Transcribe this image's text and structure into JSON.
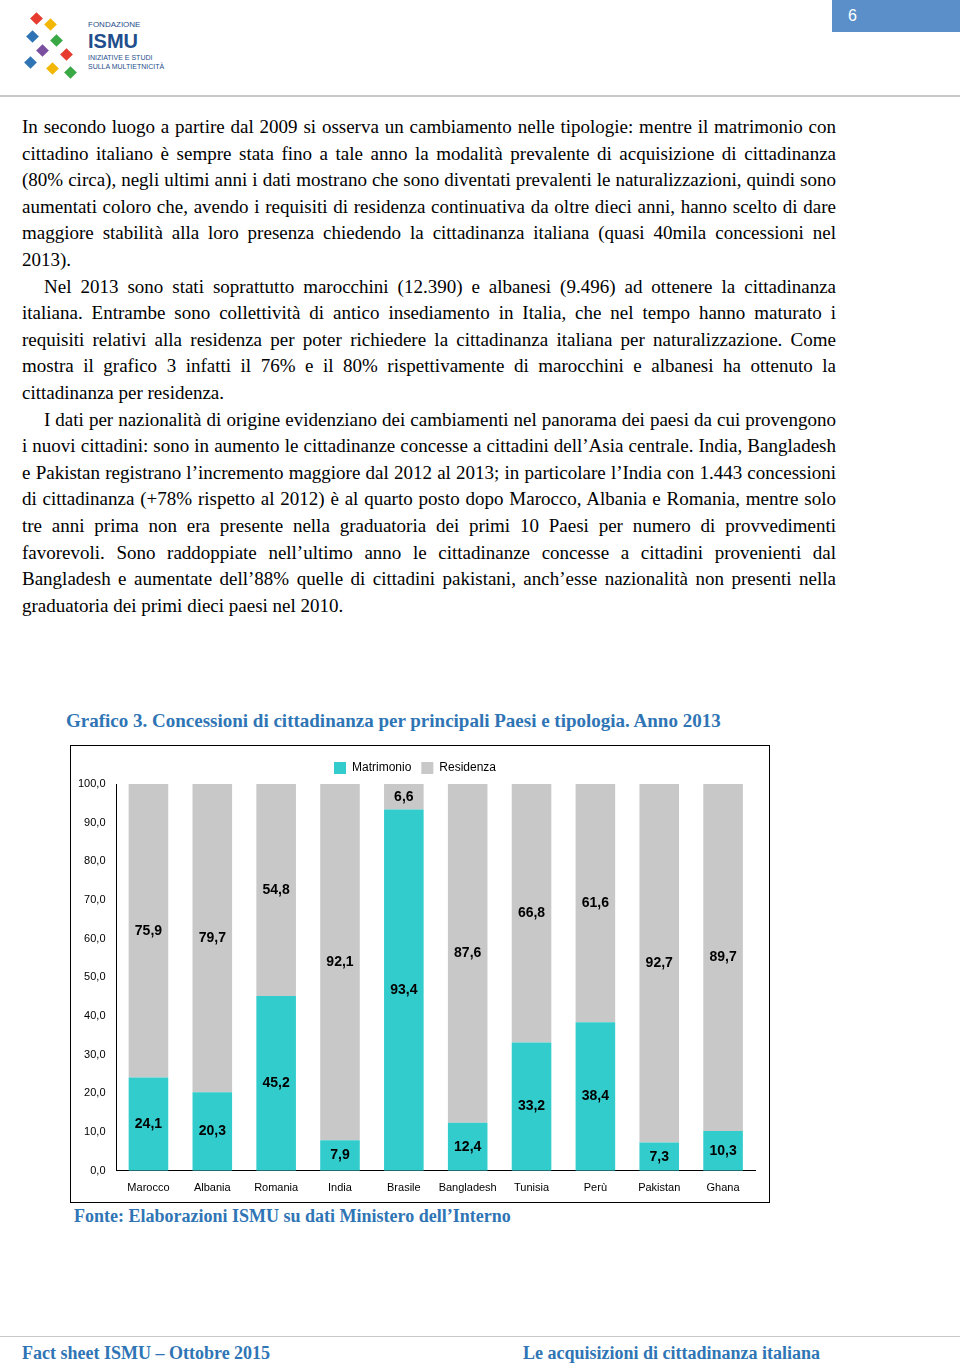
{
  "header": {
    "logo": [
      "FONDAZIONE",
      "ISMU",
      "INIZIATIVE E STUDI",
      "SULLA MULTIETNICITÀ"
    ],
    "page_number": "6"
  },
  "paragraphs": [
    "In secondo luogo a partire dal 2009 si osserva un cambiamento nelle tipologie: mentre il matrimonio con cittadino italiano è sempre stata fino a tale anno la modalità prevalente di acquisizione di cittadinanza (80% circa), negli ultimi anni i dati mostrano che sono diventati prevalenti le naturalizzazioni, quindi sono aumentati coloro che, avendo i requisiti di residenza continuativa da oltre dieci anni, hanno scelto di dare maggiore stabilità alla loro presenza chiedendo la cittadinanza italiana (quasi 40mila concessioni nel 2013).",
    "Nel 2013 sono stati soprattutto marocchini (12.390) e albanesi (9.496) ad ottenere la cittadinanza italiana. Entrambe sono collettività di antico insediamento in Italia, che nel tempo hanno maturato i requisiti relativi alla residenza per poter richiedere la cittadinanza italiana per naturalizzazione. Come mostra il grafico 3 infatti il 76% e il 80% rispettivamente di marocchini e albanesi ha ottenuto la cittadinanza per residenza.",
    "I dati per nazionalità di origine evidenziano dei cambiamenti nel panorama dei paesi da cui provengono i nuovi cittadini: sono in aumento le cittadinanze concesse a cittadini dell’Asia centrale. India, Bangladesh e Pakistan registrano l’incremento maggiore dal 2012 al 2013; in particolare l’India con 1.443 concessioni di cittadinanza (+78% rispetto al 2012) è al quarto posto dopo Marocco, Albania e Romania, mentre solo tre anni prima non era presente nella graduatoria dei primi 10 Paesi per numero di provvedimenti favorevoli. Sono raddoppiate nell’ultimo anno le cittadinanze concesse a cittadini provenienti dal Bangladesh e aumentate dell’88% quelle di cittadini pakistani, anch’esse nazionalità non presenti nella graduatoria dei primi dieci paesi nel 2010."
  ],
  "chart_title": "Grafico 3. Concessioni di cittadinanza per principali Paesi e tipologia. Anno 2013",
  "chart_data": {
    "type": "bar",
    "stacked": true,
    "data_labels": true,
    "grid": false,
    "legend": "top",
    "categories": [
      "Marocco",
      "Albania",
      "Romania",
      "India",
      "Brasile",
      "Bangladesh",
      "Tunisia",
      "Perù",
      "Pakistan",
      "Ghana"
    ],
    "series": [
      {
        "name": "Matrimonio",
        "color": "#33cccc",
        "values": [
          24.1,
          20.3,
          45.2,
          7.9,
          93.4,
          12.4,
          33.2,
          38.4,
          7.3,
          10.3
        ],
        "value_labels": [
          "24,1",
          "20,3",
          "45,2",
          "7,9",
          "93,4",
          "12,4",
          "33,2",
          "38,4",
          "7,3",
          "10,3"
        ]
      },
      {
        "name": "Residenza",
        "color": "#c8c8c8",
        "values": [
          75.9,
          79.7,
          54.8,
          92.1,
          6.6,
          87.6,
          66.8,
          61.6,
          92.7,
          89.7
        ],
        "value_labels": [
          "75,9",
          "79,7",
          "54,8",
          "92,1",
          "6,6",
          "87,6",
          "66,8",
          "61,6",
          "92,7",
          "89,7"
        ]
      }
    ],
    "ylim": [
      0,
      100
    ],
    "yticks": [
      {
        "value": 0,
        "label": "0,0"
      },
      {
        "value": 10,
        "label": "10,0"
      },
      {
        "value": 20,
        "label": "20,0"
      },
      {
        "value": 30,
        "label": "30,0"
      },
      {
        "value": 40,
        "label": "40,0"
      },
      {
        "value": 50,
        "label": "50,0"
      },
      {
        "value": 60,
        "label": "60,0"
      },
      {
        "value": 70,
        "label": "70,0"
      },
      {
        "value": 80,
        "label": "80,0"
      },
      {
        "value": 90,
        "label": "90,0"
      },
      {
        "value": 100,
        "label": "100,0"
      }
    ]
  },
  "source": "Fonte: Elaborazioni ISMU su dati Ministero dell’Interno",
  "footer": {
    "left": "Fact sheet ISMU – Ottobre 2015",
    "right": "Le acquisizioni di cittadinanza italiana"
  }
}
